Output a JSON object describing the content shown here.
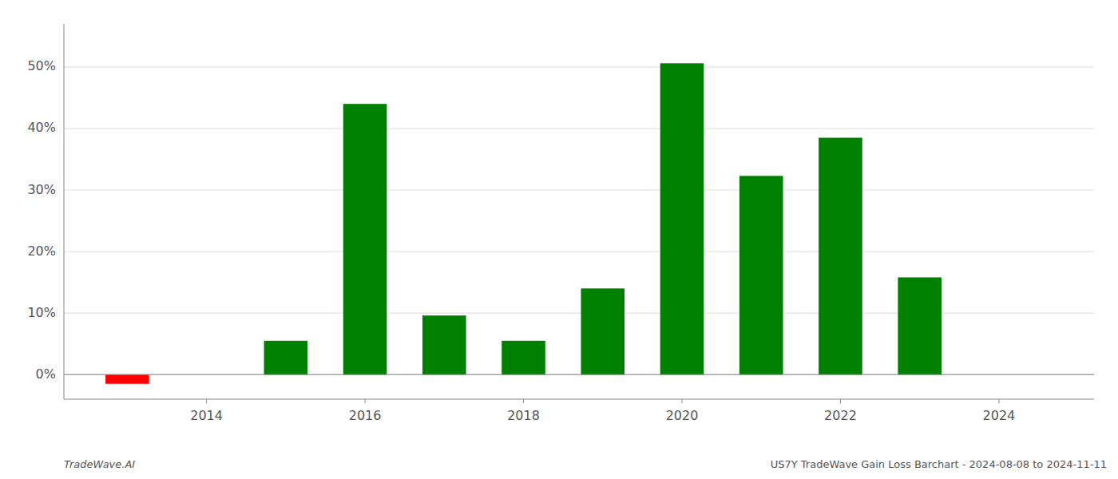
{
  "chart_data": {
    "type": "bar",
    "x": [
      2013,
      2015,
      2016,
      2017,
      2018,
      2019,
      2020,
      2021,
      2022,
      2023
    ],
    "values": [
      -0.015,
      0.055,
      0.44,
      0.096,
      0.055,
      0.14,
      0.506,
      0.323,
      0.385,
      0.158
    ],
    "colors": [
      "#ff0000",
      "#008000",
      "#008000",
      "#008000",
      "#008000",
      "#008000",
      "#008000",
      "#008000",
      "#008000",
      "#008000"
    ],
    "xlim": [
      2012.2,
      2025.2
    ],
    "xticks": [
      2014,
      2016,
      2018,
      2020,
      2022,
      2024
    ],
    "ylim": [
      -0.04,
      0.57
    ],
    "yticks": [
      {
        "value": 0.0,
        "label": "0%"
      },
      {
        "value": 0.1,
        "label": "10%"
      },
      {
        "value": 0.2,
        "label": "20%"
      },
      {
        "value": 0.3,
        "label": "30%"
      },
      {
        "value": 0.4,
        "label": "40%"
      },
      {
        "value": 0.5,
        "label": "50%"
      }
    ],
    "grid": true,
    "annotations": [
      "TradeWave.AI",
      "US7Y TradeWave Gain Loss Barchart - 2024-08-08 to 2024-11-11"
    ]
  }
}
